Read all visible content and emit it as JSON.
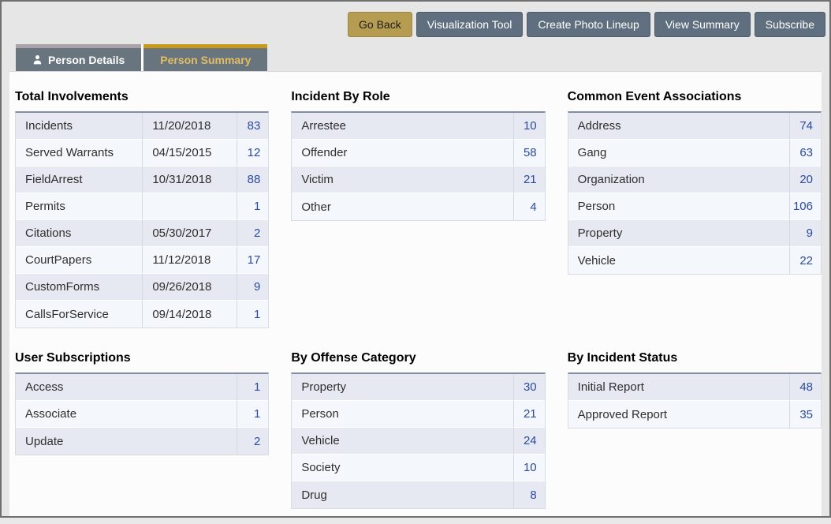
{
  "toolbar": {
    "buttons": [
      {
        "label": "Go Back",
        "style": "gold"
      },
      {
        "label": "Visualization Tool",
        "style": "slate"
      },
      {
        "label": "Create Photo Lineup",
        "style": "slate"
      },
      {
        "label": "View Summary",
        "style": "slate"
      },
      {
        "label": "Subscribe",
        "style": "slate"
      }
    ]
  },
  "tabs": [
    {
      "label": "Person Details",
      "icon": "person-icon",
      "active": false
    },
    {
      "label": "Person Summary",
      "icon": null,
      "active": true
    }
  ],
  "colors": {
    "accent_gold_button": "#b59c50",
    "tab_active_gold": "#c9991c",
    "tab_active_text": "#e3bd62",
    "button_slate": "#5f6f7f",
    "count_link_blue": "#2c4a9e",
    "row_alt_dark": "#e6e9f2",
    "row_alt_light": "#f4f7fc"
  },
  "panels": [
    {
      "title": "Total Involvements",
      "has_date": true,
      "rows": [
        {
          "label": "Incidents",
          "date": "11/20/2018",
          "count": "83"
        },
        {
          "label": "Served Warrants",
          "date": "04/15/2015",
          "count": "12"
        },
        {
          "label": "FieldArrest",
          "date": "10/31/2018",
          "count": "88"
        },
        {
          "label": "Permits",
          "date": "",
          "count": "1"
        },
        {
          "label": "Citations",
          "date": "05/30/2017",
          "count": "2"
        },
        {
          "label": "CourtPapers",
          "date": "11/12/2018",
          "count": "17"
        },
        {
          "label": "CustomForms",
          "date": "09/26/2018",
          "count": "9"
        },
        {
          "label": "CallsForService",
          "date": "09/14/2018",
          "count": "1"
        }
      ]
    },
    {
      "title": "Incident By Role",
      "has_date": false,
      "rows": [
        {
          "label": "Arrestee",
          "count": "10"
        },
        {
          "label": "Offender",
          "count": "58"
        },
        {
          "label": "Victim",
          "count": "21"
        },
        {
          "label": "Other",
          "count": "4"
        }
      ]
    },
    {
      "title": "Common Event Associations",
      "has_date": false,
      "rows": [
        {
          "label": "Address",
          "count": "74"
        },
        {
          "label": "Gang",
          "count": "63"
        },
        {
          "label": "Organization",
          "count": "20"
        },
        {
          "label": "Person",
          "count": "106"
        },
        {
          "label": "Property",
          "count": "9"
        },
        {
          "label": "Vehicle",
          "count": "22"
        }
      ]
    },
    {
      "title": "User Subscriptions",
      "has_date": false,
      "rows": [
        {
          "label": "Access",
          "count": "1"
        },
        {
          "label": "Associate",
          "count": "1"
        },
        {
          "label": "Update",
          "count": "2"
        }
      ]
    },
    {
      "title": "By Offense Category",
      "has_date": false,
      "rows": [
        {
          "label": "Property",
          "count": "30"
        },
        {
          "label": "Person",
          "count": "21"
        },
        {
          "label": "Vehicle",
          "count": "24"
        },
        {
          "label": "Society",
          "count": "10"
        },
        {
          "label": "Drug",
          "count": "8"
        }
      ]
    },
    {
      "title": "By Incident Status",
      "has_date": false,
      "rows": [
        {
          "label": "Initial Report",
          "count": "48"
        },
        {
          "label": "Approved Report",
          "count": "35"
        }
      ]
    }
  ]
}
